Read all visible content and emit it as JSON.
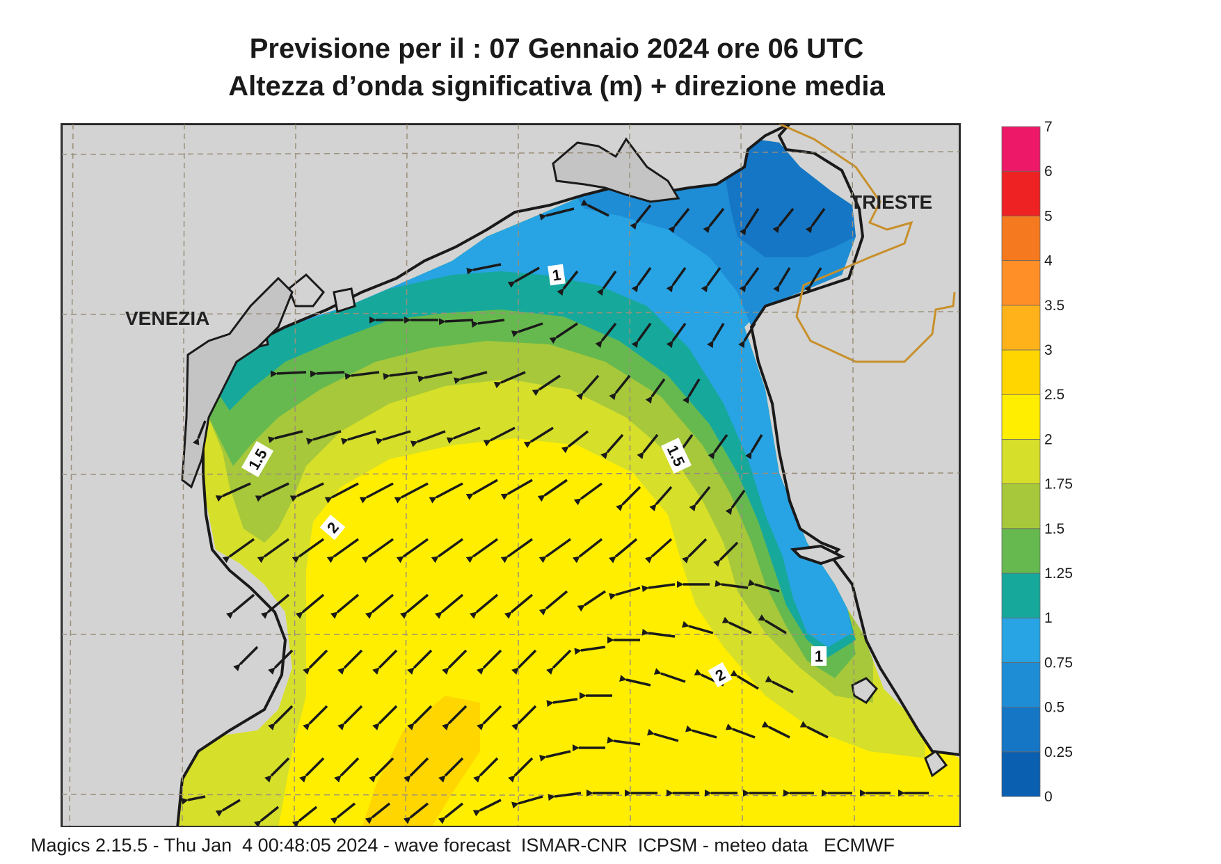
{
  "title": {
    "line1": "Previsione per il  :  07  Gennaio  2024   ore 06 UTC",
    "line2": "Altezza d’onda significativa (m) + direzione media"
  },
  "footer": "Magics 2.15.5 - Thu Jan  4 00:48:05 2024 - wave forecast  ISMAR-CNR  ICPSM - meteo data   ECMWF",
  "map": {
    "cities": [
      {
        "name": "VENEZIA"
      },
      {
        "name": "TRIESTE"
      }
    ],
    "contour_labels": [
      "1",
      "1.5",
      "1.5",
      "2",
      "1",
      "2"
    ]
  },
  "colorbar": {
    "levels": [
      "0",
      "0.25",
      "0.5",
      "0.75",
      "1",
      "1.25",
      "1.5",
      "1.75",
      "2",
      "2.5",
      "3",
      "3.5",
      "4",
      "5",
      "6",
      "7"
    ],
    "colors": [
      "#0a5fb0",
      "#1676c6",
      "#1f8dd6",
      "#28a3e3",
      "#17a89c",
      "#66b94f",
      "#a6c83a",
      "#d6df2a",
      "#ffee00",
      "#ffd600",
      "#ffb21a",
      "#ff8f26",
      "#f57a1f",
      "#ee2222",
      "#ee1868"
    ]
  },
  "colors": {
    "land": "#d3d3d3",
    "coast": "#1a1a1a",
    "border": "#c8902a",
    "arrow": "#1a1a1a"
  }
}
